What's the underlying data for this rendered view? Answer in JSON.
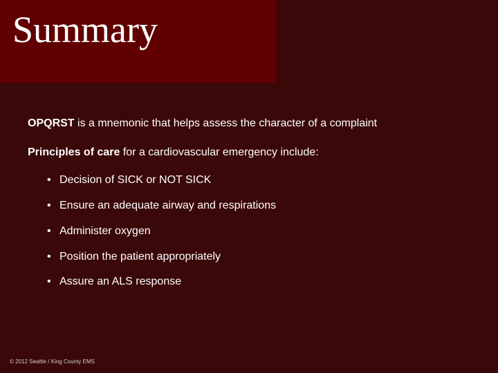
{
  "slide": {
    "background_color": "#3a0808",
    "title_box_color": "#600000",
    "text_color": "#ffffff",
    "title": "Summary",
    "title_font_family": "Georgia, 'Times New Roman', serif",
    "title_fontsize": 54,
    "body_font_family": "Verdana, Geneva, sans-serif",
    "body_fontsize": 16,
    "para1_bold": "OPQRST",
    "para1_rest": " is a mnemonic that helps assess the character of a complaint",
    "para2_bold": "Principles of care",
    "para2_rest": " for a cardiovascular emergency include:",
    "bullets": [
      "Decision of SICK or NOT SICK",
      "Ensure an adequate airway and respirations",
      "Administer oxygen",
      "Position the patient appropriately",
      "Assure an ALS response"
    ],
    "footer": "© 2012 Seattle / King County EMS",
    "footer_fontsize": 8,
    "footer_color": "#cfcfcf"
  }
}
